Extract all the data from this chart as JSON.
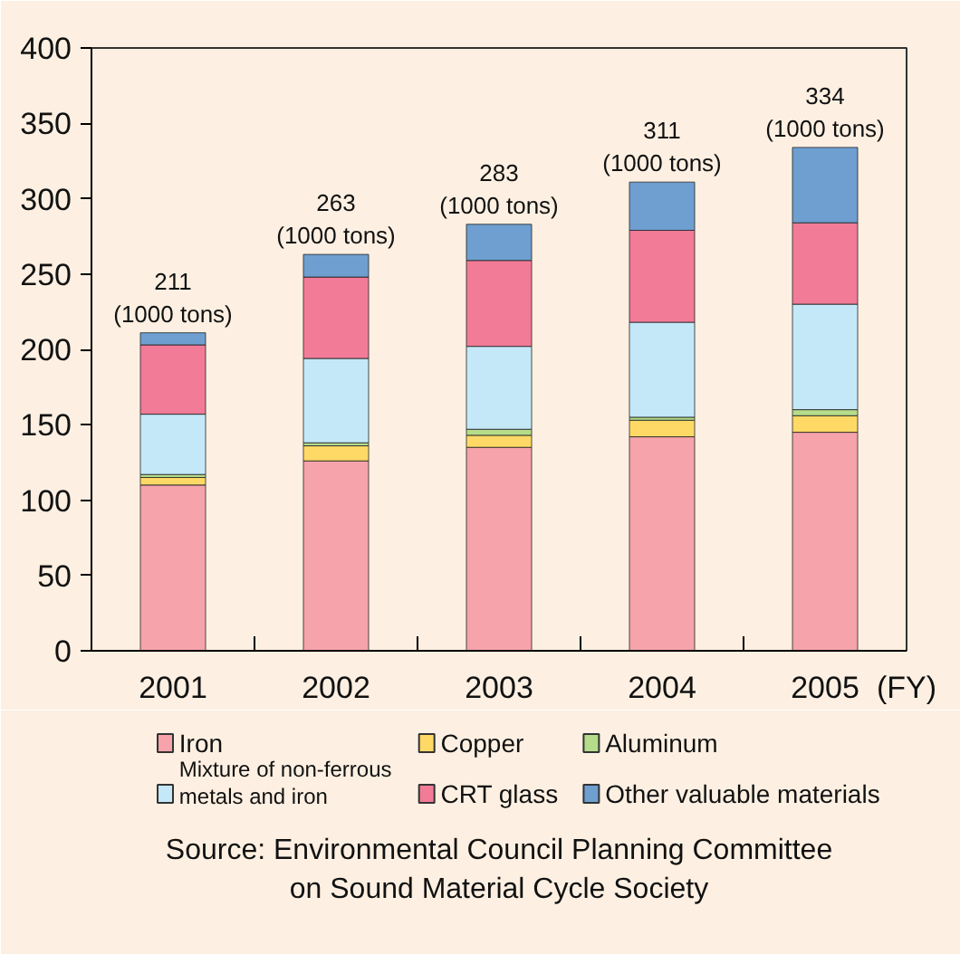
{
  "chart_data": {
    "type": "bar",
    "stacked": true,
    "categories": [
      "2001",
      "2002",
      "2003",
      "2004",
      "2005"
    ],
    "xlabel": "(FY)",
    "ylim": [
      0,
      400
    ],
    "yticks": [
      0,
      50,
      100,
      150,
      200,
      250,
      300,
      350,
      400
    ],
    "grid": false,
    "legend": "bottom",
    "series": [
      {
        "name": "Iron",
        "color": "#f6a3ab",
        "values": [
          110,
          126,
          135,
          142,
          145
        ]
      },
      {
        "name": "Copper",
        "color": "#ffd966",
        "values": [
          5,
          10,
          8,
          11,
          11
        ]
      },
      {
        "name": "Aluminum",
        "color": "#b5dc8a",
        "values": [
          2,
          2,
          4,
          2,
          4
        ]
      },
      {
        "name": "Mixture of non-ferrous\nmetals and iron",
        "color": "#c4e8f8",
        "values": [
          40,
          56,
          55,
          63,
          70
        ]
      },
      {
        "name": "CRT glass",
        "color": "#f27b98",
        "values": [
          46,
          54,
          57,
          61,
          54
        ]
      },
      {
        "name": "Other valuable materials",
        "color": "#6f9fd0",
        "values": [
          8,
          15,
          24,
          32,
          50
        ]
      }
    ],
    "totals": [
      "211\n(1000 tons)",
      "263\n(1000 tons)",
      "283\n(1000 tons)",
      "311\n(1000 tons)",
      "334\n(1000 tons)"
    ],
    "annotations": [
      "Source: Environmental Council Planning Committee\non Sound Material Cycle Society"
    ]
  }
}
